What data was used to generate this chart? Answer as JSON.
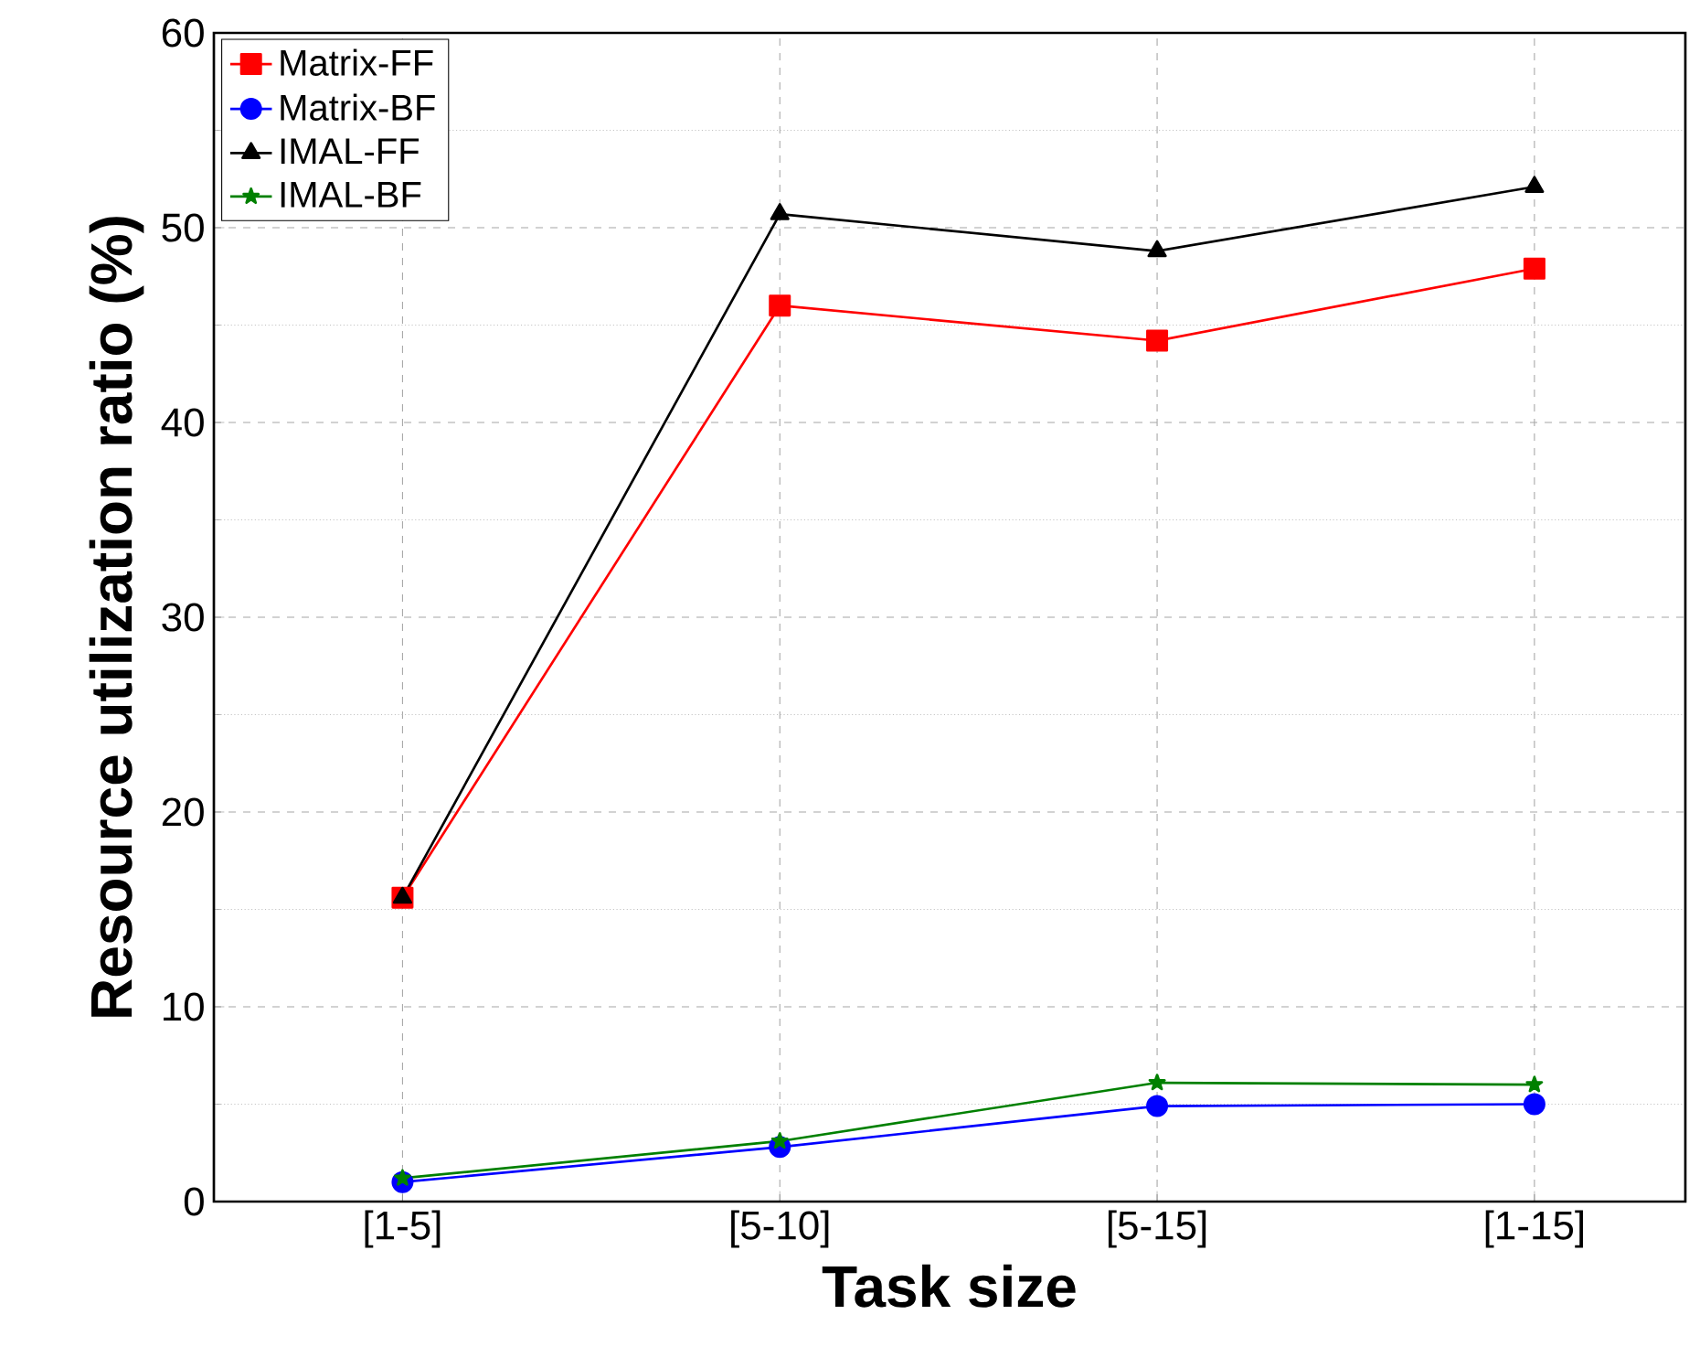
{
  "chart_data": {
    "type": "line",
    "xlabel": "Task size",
    "ylabel": "Resource utilization ratio (%)",
    "categories": [
      "[1-5]",
      "[5-10]",
      "[5-15]",
      "[1-15]"
    ],
    "series": [
      {
        "name": "Matrix-FF",
        "color": "#ff0000",
        "marker": "square",
        "values": [
          15.6,
          46.0,
          44.2,
          47.9
        ]
      },
      {
        "name": "Matrix-BF",
        "color": "#0000ff",
        "marker": "circle",
        "values": [
          1.0,
          2.8,
          4.9,
          5.0
        ]
      },
      {
        "name": "IMAL-FF",
        "color": "#000000",
        "marker": "triangle",
        "values": [
          15.6,
          50.7,
          48.8,
          52.1
        ]
      },
      {
        "name": "IMAL-BF",
        "color": "#008000",
        "marker": "star",
        "values": [
          1.2,
          3.1,
          6.1,
          6.0
        ]
      }
    ],
    "ylim": [
      0,
      60
    ],
    "yticks": [
      0,
      10,
      20,
      30,
      40,
      50,
      60
    ],
    "grid": true,
    "legend": "top left",
    "line_style": "solid"
  }
}
